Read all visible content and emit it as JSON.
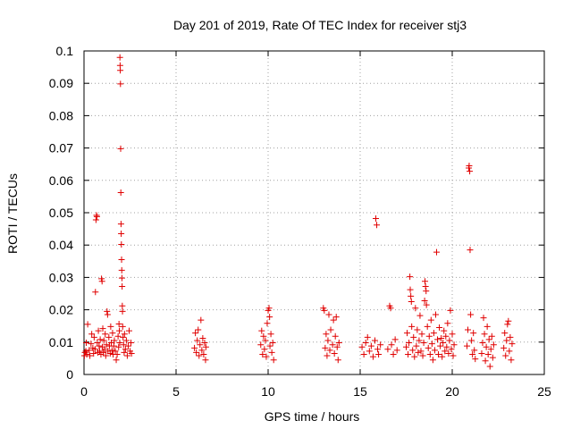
{
  "chart_data": {
    "type": "scatter",
    "title": "Day 201 of 2019, Rate Of TEC Index for receiver stj3",
    "xlabel": "GPS time / hours",
    "ylabel": "ROTI / TECUs",
    "xlim": [
      0,
      25
    ],
    "ylim": [
      0,
      0.1
    ],
    "xticks": [
      0,
      5,
      10,
      15,
      20,
      25
    ],
    "xtick_labels": [
      "0",
      "5",
      "10",
      "15",
      "20",
      "25"
    ],
    "yticks": [
      0,
      0.01,
      0.02,
      0.03,
      0.04,
      0.05,
      0.06,
      0.07,
      0.08,
      0.09,
      0.1
    ],
    "ytick_labels": [
      "0",
      "0.01",
      "0.02",
      "0.03",
      "0.04",
      "0.05",
      "0.06",
      "0.07",
      "0.08",
      "0.09",
      "0.1"
    ],
    "grid": true,
    "marker": "plus",
    "marker_color": "#e00000",
    "series": [
      {
        "name": "ROTI",
        "points": [
          [
            0.02,
            0.0058
          ],
          [
            0.05,
            0.0068
          ],
          [
            0.1,
            0.0072
          ],
          [
            0.12,
            0.0098
          ],
          [
            0.15,
            0.0062
          ],
          [
            0.2,
            0.0155
          ],
          [
            0.28,
            0.0075
          ],
          [
            0.32,
            0.0058
          ],
          [
            0.38,
            0.0095
          ],
          [
            0.42,
            0.0125
          ],
          [
            0.48,
            0.0082
          ],
          [
            0.52,
            0.0065
          ],
          [
            0.55,
            0.0115
          ],
          [
            0.6,
            0.0078
          ],
          [
            0.62,
            0.0255
          ],
          [
            0.65,
            0.0478
          ],
          [
            0.68,
            0.0492
          ],
          [
            0.7,
            0.0488
          ],
          [
            0.72,
            0.0098
          ],
          [
            0.75,
            0.0068
          ],
          [
            0.78,
            0.0135
          ],
          [
            0.82,
            0.0088
          ],
          [
            0.85,
            0.0072
          ],
          [
            0.88,
            0.0108
          ],
          [
            0.92,
            0.0062
          ],
          [
            0.95,
            0.0296
          ],
          [
            0.98,
            0.0288
          ],
          [
            1.0,
            0.0085
          ],
          [
            1.02,
            0.0142
          ],
          [
            1.05,
            0.0068
          ],
          [
            1.08,
            0.0105
          ],
          [
            1.12,
            0.0078
          ],
          [
            1.15,
            0.0125
          ],
          [
            1.18,
            0.0058
          ],
          [
            1.22,
            0.0092
          ],
          [
            1.25,
            0.0195
          ],
          [
            1.28,
            0.0185
          ],
          [
            1.3,
            0.0072
          ],
          [
            1.35,
            0.0115
          ],
          [
            1.38,
            0.0088
          ],
          [
            1.42,
            0.0065
          ],
          [
            1.45,
            0.0148
          ],
          [
            1.48,
            0.0098
          ],
          [
            1.52,
            0.0075
          ],
          [
            1.55,
            0.0128
          ],
          [
            1.58,
            0.0062
          ],
          [
            1.62,
            0.0088
          ],
          [
            1.65,
            0.0105
          ],
          [
            1.7,
            0.0072
          ],
          [
            1.75,
            0.0045
          ],
          [
            1.8,
            0.0062
          ],
          [
            1.85,
            0.0118
          ],
          [
            1.88,
            0.0085
          ],
          [
            1.9,
            0.0156
          ],
          [
            1.92,
            0.0135
          ],
          [
            1.94,
            0.0098
          ],
          [
            1.95,
            0.098
          ],
          [
            1.96,
            0.0955
          ],
          [
            1.97,
            0.094
          ],
          [
            1.98,
            0.0898
          ],
          [
            1.99,
            0.0698
          ],
          [
            2.0,
            0.0562
          ],
          [
            2.01,
            0.0465
          ],
          [
            2.02,
            0.0435
          ],
          [
            2.03,
            0.0402
          ],
          [
            2.04,
            0.0355
          ],
          [
            2.05,
            0.0322
          ],
          [
            2.06,
            0.0298
          ],
          [
            2.07,
            0.0272
          ],
          [
            2.08,
            0.0212
          ],
          [
            2.09,
            0.0195
          ],
          [
            2.1,
            0.0148
          ],
          [
            2.12,
            0.0115
          ],
          [
            2.15,
            0.0092
          ],
          [
            2.18,
            0.0068
          ],
          [
            2.2,
            0.0125
          ],
          [
            2.25,
            0.0078
          ],
          [
            2.3,
            0.0105
          ],
          [
            2.35,
            0.0058
          ],
          [
            2.4,
            0.0088
          ],
          [
            2.45,
            0.0135
          ],
          [
            2.5,
            0.0072
          ],
          [
            2.55,
            0.0098
          ],
          [
            2.58,
            0.0065
          ],
          [
            6.0,
            0.0082
          ],
          [
            6.05,
            0.0128
          ],
          [
            6.1,
            0.0068
          ],
          [
            6.15,
            0.0105
          ],
          [
            6.2,
            0.0138
          ],
          [
            6.25,
            0.0058
          ],
          [
            6.3,
            0.0092
          ],
          [
            6.35,
            0.0168
          ],
          [
            6.4,
            0.0075
          ],
          [
            6.45,
            0.0112
          ],
          [
            6.5,
            0.0062
          ],
          [
            6.55,
            0.0098
          ],
          [
            6.6,
            0.0045
          ],
          [
            6.62,
            0.0085
          ],
          [
            9.6,
            0.0092
          ],
          [
            9.65,
            0.0135
          ],
          [
            9.7,
            0.0062
          ],
          [
            9.75,
            0.0118
          ],
          [
            9.8,
            0.0078
          ],
          [
            9.85,
            0.0105
          ],
          [
            9.9,
            0.0055
          ],
          [
            9.95,
            0.0158
          ],
          [
            10.0,
            0.0198
          ],
          [
            10.05,
            0.0205
          ],
          [
            10.08,
            0.0178
          ],
          [
            10.1,
            0.0088
          ],
          [
            10.15,
            0.0125
          ],
          [
            10.2,
            0.0068
          ],
          [
            10.25,
            0.0098
          ],
          [
            10.3,
            0.0045
          ],
          [
            13.0,
            0.0205
          ],
          [
            13.05,
            0.0198
          ],
          [
            13.1,
            0.0082
          ],
          [
            13.15,
            0.0125
          ],
          [
            13.2,
            0.0058
          ],
          [
            13.25,
            0.0105
          ],
          [
            13.3,
            0.0185
          ],
          [
            13.35,
            0.0075
          ],
          [
            13.4,
            0.0138
          ],
          [
            13.5,
            0.0092
          ],
          [
            13.55,
            0.0168
          ],
          [
            13.6,
            0.0065
          ],
          [
            13.65,
            0.0118
          ],
          [
            13.7,
            0.0178
          ],
          [
            13.75,
            0.0085
          ],
          [
            13.8,
            0.0045
          ],
          [
            13.85,
            0.0098
          ],
          [
            15.1,
            0.0085
          ],
          [
            15.2,
            0.0062
          ],
          [
            15.3,
            0.0098
          ],
          [
            15.4,
            0.0115
          ],
          [
            15.5,
            0.0072
          ],
          [
            15.6,
            0.0088
          ],
          [
            15.7,
            0.0055
          ],
          [
            15.8,
            0.0105
          ],
          [
            15.85,
            0.0482
          ],
          [
            15.9,
            0.0462
          ],
          [
            15.95,
            0.0078
          ],
          [
            16.0,
            0.0062
          ],
          [
            16.1,
            0.0092
          ],
          [
            16.5,
            0.0078
          ],
          [
            16.6,
            0.0212
          ],
          [
            16.65,
            0.0205
          ],
          [
            16.7,
            0.0092
          ],
          [
            16.8,
            0.0062
          ],
          [
            16.9,
            0.0108
          ],
          [
            17.0,
            0.0075
          ],
          [
            17.5,
            0.0085
          ],
          [
            17.55,
            0.0128
          ],
          [
            17.6,
            0.0062
          ],
          [
            17.65,
            0.0098
          ],
          [
            17.7,
            0.0302
          ],
          [
            17.72,
            0.0262
          ],
          [
            17.75,
            0.0242
          ],
          [
            17.78,
            0.0225
          ],
          [
            17.8,
            0.0148
          ],
          [
            17.85,
            0.0075
          ],
          [
            17.9,
            0.0115
          ],
          [
            17.95,
            0.0055
          ],
          [
            18.0,
            0.0205
          ],
          [
            18.05,
            0.0088
          ],
          [
            18.1,
            0.0138
          ],
          [
            18.15,
            0.0068
          ],
          [
            18.2,
            0.0105
          ],
          [
            18.25,
            0.0182
          ],
          [
            18.3,
            0.0072
          ],
          [
            18.35,
            0.0125
          ],
          [
            18.4,
            0.0058
          ],
          [
            18.45,
            0.0098
          ],
          [
            18.5,
            0.0228
          ],
          [
            18.52,
            0.0288
          ],
          [
            18.55,
            0.0272
          ],
          [
            18.58,
            0.0258
          ],
          [
            18.6,
            0.0215
          ],
          [
            18.65,
            0.0148
          ],
          [
            18.7,
            0.0082
          ],
          [
            18.75,
            0.0118
          ],
          [
            18.8,
            0.0062
          ],
          [
            18.85,
            0.0168
          ],
          [
            18.9,
            0.0095
          ],
          [
            18.95,
            0.0045
          ],
          [
            19.0,
            0.0128
          ],
          [
            19.05,
            0.0075
          ],
          [
            19.1,
            0.0185
          ],
          [
            19.15,
            0.0378
          ],
          [
            19.2,
            0.0108
          ],
          [
            19.25,
            0.0062
          ],
          [
            19.3,
            0.0145
          ],
          [
            19.35,
            0.0088
          ],
          [
            19.4,
            0.0112
          ],
          [
            19.45,
            0.0055
          ],
          [
            19.5,
            0.0098
          ],
          [
            19.55,
            0.0135
          ],
          [
            19.6,
            0.0072
          ],
          [
            19.65,
            0.0118
          ],
          [
            19.7,
            0.0085
          ],
          [
            19.75,
            0.0158
          ],
          [
            19.8,
            0.0065
          ],
          [
            19.85,
            0.0105
          ],
          [
            19.9,
            0.0198
          ],
          [
            19.95,
            0.0078
          ],
          [
            20.0,
            0.0125
          ],
          [
            20.05,
            0.0058
          ],
          [
            20.1,
            0.0092
          ],
          [
            20.8,
            0.0088
          ],
          [
            20.85,
            0.0138
          ],
          [
            20.9,
            0.0638
          ],
          [
            20.92,
            0.0645
          ],
          [
            20.95,
            0.0628
          ],
          [
            20.97,
            0.0385
          ],
          [
            21.0,
            0.0185
          ],
          [
            21.05,
            0.0105
          ],
          [
            21.1,
            0.0062
          ],
          [
            21.15,
            0.0128
          ],
          [
            21.2,
            0.0075
          ],
          [
            21.25,
            0.0048
          ],
          [
            21.6,
            0.0065
          ],
          [
            21.65,
            0.0098
          ],
          [
            21.7,
            0.0175
          ],
          [
            21.75,
            0.0125
          ],
          [
            21.8,
            0.0042
          ],
          [
            21.85,
            0.0085
          ],
          [
            21.9,
            0.0148
          ],
          [
            21.95,
            0.0062
          ],
          [
            22.0,
            0.0108
          ],
          [
            22.05,
            0.0025
          ],
          [
            22.1,
            0.0078
          ],
          [
            22.15,
            0.0118
          ],
          [
            22.2,
            0.0052
          ],
          [
            22.25,
            0.0092
          ],
          [
            22.8,
            0.0082
          ],
          [
            22.85,
            0.0128
          ],
          [
            22.9,
            0.0058
          ],
          [
            22.95,
            0.0105
          ],
          [
            23.0,
            0.0155
          ],
          [
            23.05,
            0.0165
          ],
          [
            23.1,
            0.0072
          ],
          [
            23.15,
            0.0115
          ],
          [
            23.2,
            0.0045
          ],
          [
            23.25,
            0.0095
          ]
        ]
      }
    ]
  }
}
